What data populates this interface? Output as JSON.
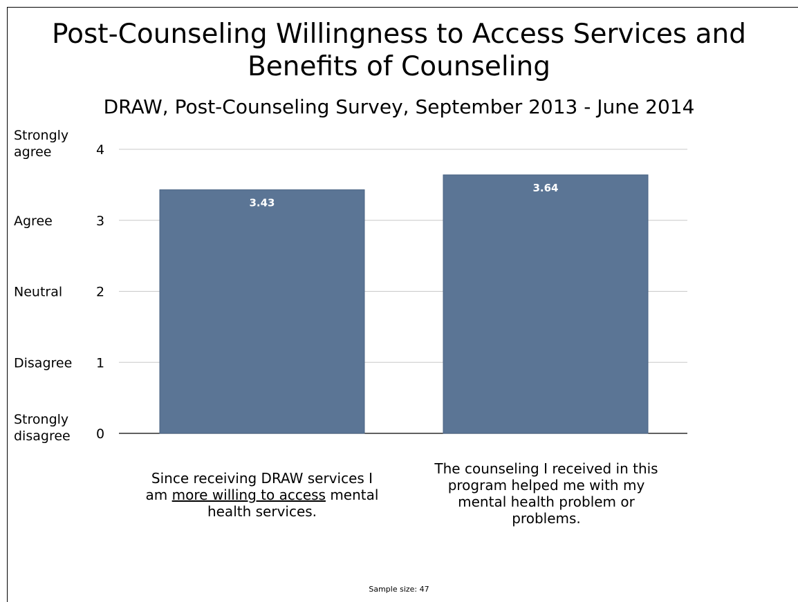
{
  "chart_data": {
    "type": "bar",
    "title": "Post-Counseling Willingness to Access Services and Benefits of Counseling",
    "subtitle": "DRAW, Post-Counseling Survey, September 2013 - June 2014",
    "categories": [
      {
        "parts": [
          {
            "text": "Since receiving DRAW services I am ",
            "underline": false
          },
          {
            "text": "more willing to access",
            "underline": true
          },
          {
            "text": " mental health services.",
            "underline": false
          }
        ]
      },
      {
        "parts": [
          {
            "text": "The counseling I received in this program helped me with my mental health problem or problems.",
            "underline": false
          }
        ]
      }
    ],
    "values": [
      3.43,
      3.64
    ],
    "value_labels": [
      "3.43",
      "3.64"
    ],
    "ylim": [
      0,
      4
    ],
    "yticks": [
      0,
      1,
      2,
      3,
      4
    ],
    "ytick_labels": [
      "0",
      "1",
      "2",
      "3",
      "4"
    ],
    "ytick_descriptions": [
      "Strongly disagree",
      "Disagree",
      "Neutral",
      "Agree",
      "Strongly agree"
    ],
    "grid": true,
    "bar_color": "#5b7595",
    "gridline_color": "#c8c8c8"
  },
  "footnote": "Sample size: 47"
}
